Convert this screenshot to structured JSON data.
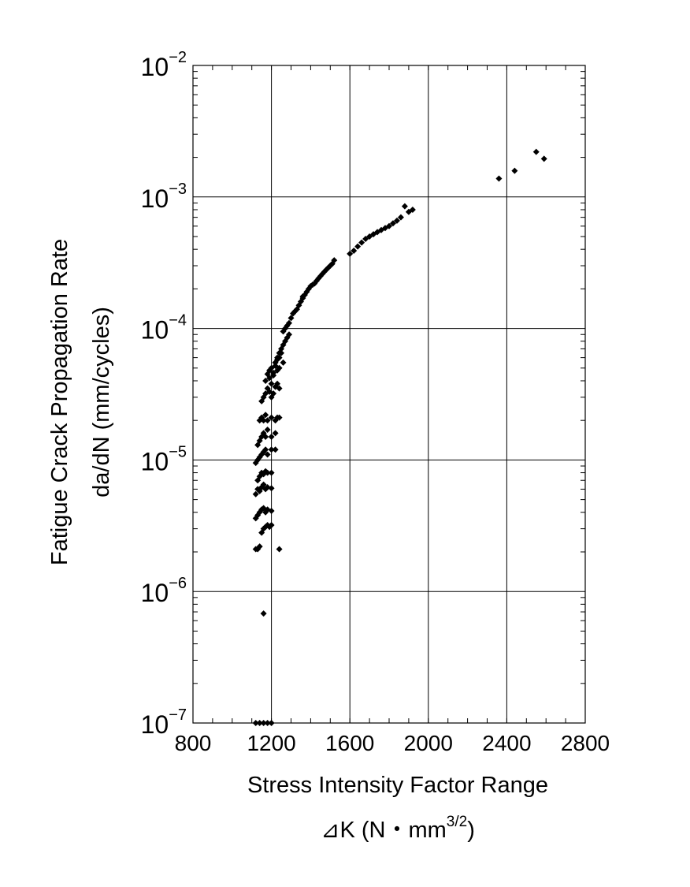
{
  "chart_data": {
    "type": "scatter",
    "xlabel": "Stress Intensity Factor Range",
    "xlabel_units": {
      "prefix": "⊿K (N・mm",
      "sup": "3/2",
      "suffix": ")"
    },
    "ylabel": "Fatigue Crack Propagation Rate",
    "ylabel_units": "da/dN (mm/cycles)",
    "xlim": [
      800,
      2800
    ],
    "ylim": [
      1e-07,
      0.01
    ],
    "yscale": "log",
    "grid": true,
    "marker": "diamond",
    "marker_color": "#000000",
    "x_ticks": [
      800,
      1200,
      1600,
      2000,
      2400,
      2800
    ],
    "x_tick_labels": [
      "800",
      "1200",
      "1600",
      "2000",
      "2400",
      "2800"
    ],
    "y_ticks": [
      {
        "value": 0.01,
        "base": "10",
        "exp": "−2"
      },
      {
        "value": 0.001,
        "base": "10",
        "exp": "−3"
      },
      {
        "value": 0.0001,
        "base": "10",
        "exp": "−4"
      },
      {
        "value": 1e-05,
        "base": "10",
        "exp": "−5"
      },
      {
        "value": 1e-06,
        "base": "10",
        "exp": "−6"
      },
      {
        "value": 1e-07,
        "base": "10",
        "exp": "−7"
      }
    ],
    "series": [
      {
        "x": [
          1120,
          1140,
          1160,
          1180,
          1200,
          1160,
          1120,
          1130,
          1140,
          1150,
          1160,
          1170,
          1180,
          1190,
          1200,
          1240,
          1120,
          1130,
          1140,
          1150,
          1160,
          1170,
          1180,
          1200,
          1120,
          1130,
          1140,
          1150,
          1160,
          1170,
          1180,
          1200,
          1130,
          1140,
          1150,
          1160,
          1170,
          1180,
          1200,
          1120,
          1130,
          1140,
          1150,
          1160,
          1170,
          1180,
          1200,
          1220,
          1130,
          1140,
          1150,
          1160,
          1170,
          1180,
          1200,
          1220,
          1140,
          1150,
          1160,
          1170,
          1180,
          1200,
          1220,
          1230,
          1240,
          1150,
          1160,
          1170,
          1180,
          1190,
          1200,
          1210,
          1220,
          1230,
          1240,
          1170,
          1180,
          1190,
          1200,
          1210,
          1220,
          1230,
          1240,
          1190,
          1200,
          1210,
          1220,
          1230,
          1240,
          1250,
          1260,
          1220,
          1230,
          1240,
          1250,
          1260,
          1270,
          1280,
          1290,
          1260,
          1270,
          1280,
          1290,
          1300,
          1310,
          1320,
          1330,
          1340,
          1350,
          1360,
          1360,
          1370,
          1380,
          1390,
          1400,
          1410,
          1420,
          1430,
          1440,
          1450,
          1460,
          1470,
          1480,
          1490,
          1500,
          1510,
          1520,
          1600,
          1620,
          1640,
          1660,
          1680,
          1700,
          1720,
          1740,
          1760,
          1780,
          1800,
          1820,
          1840,
          1860,
          1880,
          1900,
          1920,
          2360,
          2440,
          2550,
          2590
        ],
        "y": [
          1e-07,
          1e-07,
          1e-07,
          1e-07,
          1e-07,
          6.8e-07,
          2.1e-06,
          2.1e-06,
          2.2e-06,
          2.8e-06,
          3e-06,
          3.1e-06,
          3.2e-06,
          3.1e-06,
          3.2e-06,
          2.1e-06,
          3.6e-06,
          3.8e-06,
          4e-06,
          4.2e-06,
          4.3e-06,
          4e-06,
          4.2e-06,
          4.1e-06,
          5.5e-06,
          6e-06,
          5.8e-06,
          6.2e-06,
          6.5e-06,
          6e-06,
          6.2e-06,
          6.1e-06,
          7e-06,
          7.5e-06,
          8e-06,
          7.8e-06,
          8.2e-06,
          8e-06,
          8e-06,
          9.5e-06,
          1e-05,
          1.05e-05,
          1.1e-05,
          1.15e-05,
          1.2e-05,
          1.1e-05,
          1.2e-05,
          1.2e-05,
          1.3e-05,
          1.4e-05,
          1.5e-05,
          1.6e-05,
          1.5e-05,
          1.7e-05,
          1.5e-05,
          1.6e-05,
          2e-05,
          2.1e-05,
          2e-05,
          2.2e-05,
          2e-05,
          2.1e-05,
          2e-05,
          2.1e-05,
          2.1e-05,
          2.8e-05,
          3e-05,
          3.2e-05,
          3.5e-05,
          3.3e-05,
          3e-05,
          3.2e-05,
          3.6e-05,
          3.8e-05,
          3.5e-05,
          4e-05,
          4.5e-05,
          4.8e-05,
          5e-05,
          4.6e-05,
          5.2e-05,
          4.8e-05,
          5e-05,
          4.2e-05,
          3.8e-05,
          4.4e-05,
          5.5e-05,
          5.8e-05,
          6e-05,
          6.5e-05,
          5.5e-05,
          5.5e-05,
          6e-05,
          6.5e-05,
          7e-05,
          7.5e-05,
          8e-05,
          8.5e-05,
          9e-05,
          9.5e-05,
          0.0001,
          0.000105,
          0.00011,
          0.00012,
          0.00013,
          0.000135,
          0.00014,
          0.00015,
          0.00016,
          0.00017,
          0.000175,
          0.00018,
          0.00019,
          0.0002,
          0.00021,
          0.000215,
          0.00022,
          0.00023,
          0.00024,
          0.00025,
          0.00026,
          0.00027,
          0.00028,
          0.00029,
          0.0003,
          0.00031,
          0.00033,
          0.00037,
          0.00039,
          0.00042,
          0.00045,
          0.00048,
          0.0005,
          0.00052,
          0.00054,
          0.00056,
          0.00058,
          0.0006,
          0.00063,
          0.00066,
          0.0007,
          0.00085,
          0.00077,
          0.0008,
          0.00138,
          0.00158,
          0.0022,
          0.00195
        ]
      }
    ]
  }
}
